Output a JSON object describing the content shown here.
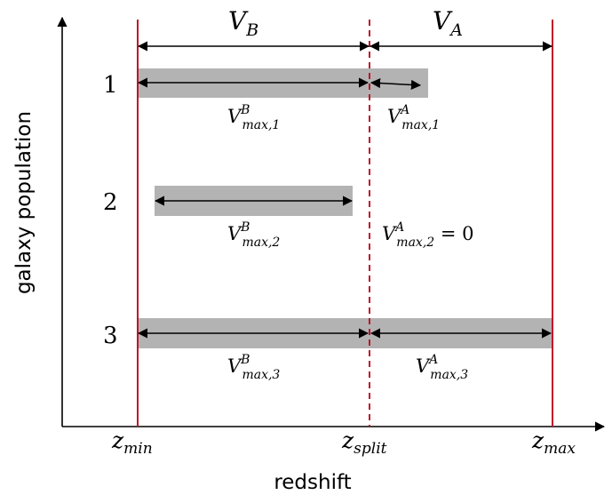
{
  "axes": {
    "x_label": "redshift",
    "y_label": "galaxy population"
  },
  "volumes": {
    "left": {
      "base": "V",
      "sub": "B"
    },
    "right": {
      "base": "V",
      "sub": "A"
    }
  },
  "boundaries": {
    "min": {
      "base": "z",
      "sub": "min"
    },
    "split": {
      "base": "z",
      "sub": "split"
    },
    "max": {
      "base": "z",
      "sub": "max"
    }
  },
  "populations": [
    {
      "id": "1",
      "left_label": {
        "base": "V",
        "sup": "B",
        "sub": "max,1"
      },
      "right_label": {
        "base": "V",
        "sup": "A",
        "sub": "max,1",
        "suffix": ""
      }
    },
    {
      "id": "2",
      "left_label": {
        "base": "V",
        "sup": "B",
        "sub": "max,2"
      },
      "right_label": {
        "base": "V",
        "sup": "A",
        "sub": "max,2",
        "suffix": " = 0"
      }
    },
    {
      "id": "3",
      "left_label": {
        "base": "V",
        "sup": "B",
        "sub": "max,3"
      },
      "right_label": {
        "base": "V",
        "sup": "A",
        "sub": "max,3",
        "suffix": ""
      }
    }
  ],
  "colors": {
    "boundary": "#c0152a",
    "bar": "#b3b3b3",
    "ink": "#000000"
  }
}
